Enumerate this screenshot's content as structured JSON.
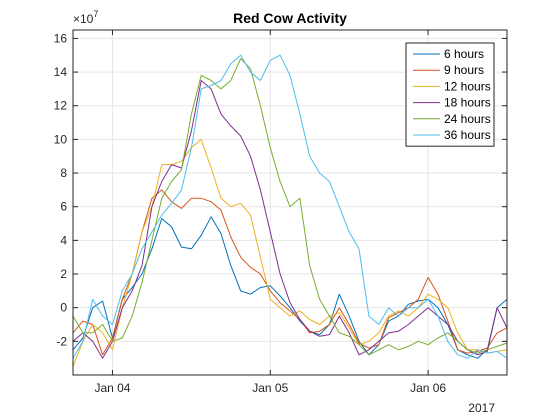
{
  "chart_data": {
    "type": "line",
    "title": "Red Cow Activity",
    "xlabel": "",
    "ylabel": "",
    "exponent_label": "×10",
    "exponent_power": "7",
    "year_label": "2017",
    "xlim": [
      0,
      132
    ],
    "ylim": [
      -4,
      16.5
    ],
    "grid": true,
    "legend_location": "top-right",
    "x_ticks": [
      {
        "x": 12,
        "label": "Jan 04"
      },
      {
        "x": 60,
        "label": "Jan 05"
      },
      {
        "x": 108,
        "label": "Jan 06"
      }
    ],
    "y_ticks": [
      -2,
      0,
      2,
      4,
      6,
      8,
      10,
      12,
      14,
      16
    ],
    "x": [
      0,
      3,
      6,
      9,
      12,
      15,
      18,
      21,
      24,
      27,
      30,
      33,
      36,
      39,
      42,
      45,
      48,
      51,
      54,
      57,
      60,
      63,
      66,
      69,
      72,
      75,
      78,
      81,
      84,
      87,
      90,
      93,
      96,
      99,
      102,
      105,
      108,
      111,
      114,
      117,
      120,
      123,
      126,
      129,
      132
    ],
    "series": [
      {
        "name": "6 hours",
        "color": "#0072BD",
        "values": [
          -2.5,
          -1.8,
          0,
          0.4,
          -1.8,
          0.5,
          1.2,
          2,
          3.5,
          5.3,
          4.8,
          3.6,
          3.5,
          4.3,
          5.4,
          4.4,
          2.5,
          1,
          0.8,
          1.2,
          1.3,
          0.7,
          0,
          -0.8,
          -1.4,
          -1.6,
          -1,
          0.8,
          -0.5,
          -2,
          -2.8,
          -2.2,
          -0.8,
          -0.5,
          0.2,
          0.4,
          0.5,
          0,
          -1,
          -2.5,
          -2.8,
          -3,
          -2.5,
          0,
          0.5
        ]
      },
      {
        "name": "9 hours",
        "color": "#D95319",
        "values": [
          -1.5,
          -0.8,
          -1,
          -2.8,
          -1.8,
          0.5,
          2,
          4.5,
          6.5,
          7,
          6.3,
          5.9,
          6.5,
          6.5,
          6.3,
          5.8,
          4.2,
          3,
          2.4,
          2,
          1,
          0.3,
          -0.2,
          -0.7,
          -1.5,
          -1.4,
          -1,
          0,
          -1,
          -2.1,
          -2.4,
          -2.2,
          -0.6,
          -0.3,
          0,
          0.5,
          1.8,
          0.8,
          -0.8,
          -2.5,
          -2.7,
          -2.6,
          -2.4,
          -1.5,
          -1.2
        ]
      },
      {
        "name": "12 hours",
        "color": "#EDB120",
        "values": [
          -3.5,
          -2,
          -1,
          -1.5,
          -2.5,
          0,
          2,
          4.5,
          6,
          8.5,
          8.5,
          8.7,
          9.5,
          10,
          8.3,
          6.5,
          6,
          6.2,
          5.5,
          3,
          0.5,
          0,
          -0.5,
          -0.2,
          -0.7,
          -1,
          -0.5,
          -0.3,
          -1.2,
          -2.2,
          -2,
          -1.5,
          -0.5,
          -0.2,
          -0.5,
          0,
          0.8,
          0.5,
          0,
          -1.5,
          -2.5,
          -2.5,
          -2.7,
          -2.6,
          -2.5
        ]
      },
      {
        "name": "18 hours",
        "color": "#7E2F8E",
        "values": [
          -2,
          -1.5,
          -2,
          -3,
          -2,
          0,
          1,
          2.5,
          6,
          7.5,
          8.5,
          8.3,
          10.5,
          13.5,
          13,
          11.5,
          10.8,
          10.2,
          9,
          7,
          4.5,
          2,
          0.3,
          -0.7,
          -1.4,
          -1.7,
          -1.6,
          -0.5,
          -1.5,
          -2.8,
          -2.5,
          -2,
          -1.5,
          -1.4,
          -1,
          -0.5,
          0,
          -0.5,
          -1,
          -2,
          -2.5,
          -2.8,
          -2.6,
          0,
          -1.2
        ]
      },
      {
        "name": "24 hours",
        "color": "#77AC30",
        "values": [
          -0.5,
          -1.5,
          -1.5,
          -1,
          -2,
          -1.8,
          -0.5,
          1.5,
          4,
          6.5,
          7.5,
          8.2,
          11.5,
          13.8,
          13.5,
          13,
          13.5,
          14.8,
          14.2,
          12,
          9.5,
          7.5,
          6,
          6.5,
          2.5,
          0.5,
          -0.5,
          -1.5,
          -1.7,
          -2.2,
          -2.8,
          -2.5,
          -2.2,
          -2.5,
          -2.3,
          -2,
          -2.2,
          -1.8,
          -1.5,
          -2,
          -2.5,
          -2.7,
          -2.5,
          -2.3,
          -2.1
        ]
      },
      {
        "name": "36 hours",
        "color": "#4DBEEE",
        "values": [
          -3,
          -2,
          0.5,
          -0.5,
          -1,
          1,
          2,
          3.5,
          4.5,
          5.5,
          6.2,
          7,
          9.5,
          13,
          13.2,
          13.5,
          14.5,
          15,
          14,
          13.5,
          14.7,
          15,
          13.8,
          11.5,
          9,
          8,
          7.5,
          6,
          4.5,
          3.5,
          -0.5,
          -1,
          0,
          -0.5,
          0,
          0,
          0.5,
          -0.5,
          -2,
          -2.8,
          -3,
          -2.5,
          -2.7,
          -2.6,
          -3
        ]
      }
    ]
  }
}
